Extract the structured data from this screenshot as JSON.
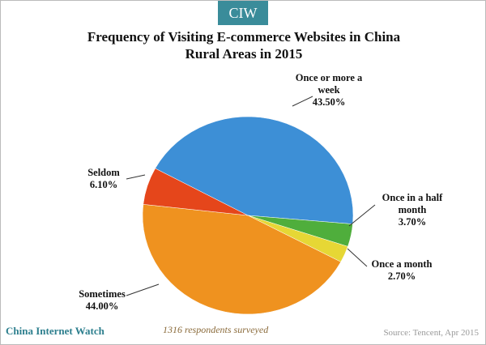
{
  "badge": "CIW",
  "chart_data": {
    "type": "pie",
    "title": "Frequency of Visiting E-commerce Websites in China Rural Areas in 2015",
    "categories": [
      "Once or more a week",
      "Once in a half month",
      "Once a month",
      "Sometimes",
      "Seldom"
    ],
    "values": [
      43.5,
      3.7,
      2.7,
      44.0,
      6.1
    ],
    "value_labels": [
      "43.50%",
      "3.70%",
      "2.70%",
      "44.00%",
      "6.10%"
    ],
    "colors": [
      "#3d8fd6",
      "#4fae3c",
      "#e6d735",
      "#ef921f",
      "#e5461b"
    ],
    "note": "1316 respondents surveyed"
  },
  "footer": {
    "brand": "China Internet Watch",
    "source": "Source: Tencent, Apr 2015"
  }
}
